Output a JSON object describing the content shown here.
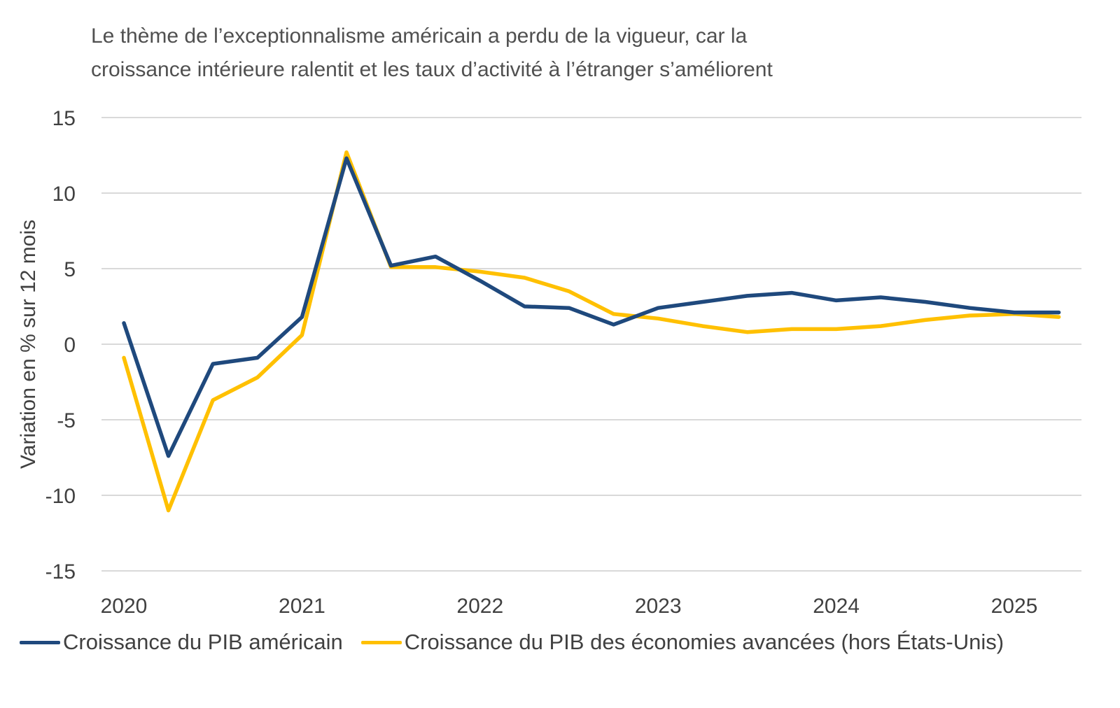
{
  "chart_data": {
    "type": "line",
    "title": "Le thème de l’exceptionnalisme américain a perdu de la vigueur, car la croissance intérieure ralentit et les taux d’activité à l’étranger s’améliorent",
    "title_lines": [
      "Le thème de l’exceptionnalisme américain a perdu de la vigueur, car la",
      "croissance intérieure ralentit et les taux d’activité à l’étranger s’améliorent"
    ],
    "xlabel": "",
    "ylabel": "Variation en % sur 12 mois",
    "ylim": [
      -15,
      15
    ],
    "yticks": [
      15,
      10,
      5,
      0,
      -5,
      -10,
      -15
    ],
    "xticks": [
      "2020",
      "2021",
      "2022",
      "2023",
      "2024",
      "2025"
    ],
    "x": [
      "2020T1",
      "2020T2",
      "2020T3",
      "2020T4",
      "2021T1",
      "2021T2",
      "2021T3",
      "2021T4",
      "2022T1",
      "2022T2",
      "2022T3",
      "2022T4",
      "2023T1",
      "2023T2",
      "2023T3",
      "2023T4",
      "2024T1",
      "2024T2",
      "2024T3",
      "2024T4",
      "2025T1",
      "2025T2"
    ],
    "grid": true,
    "legend_position": "bottom",
    "series": [
      {
        "name": "Croissance du PIB américain",
        "color": "#1F497D",
        "values": [
          1.4,
          -7.4,
          -1.3,
          -0.9,
          1.8,
          12.3,
          5.2,
          5.8,
          4.2,
          2.5,
          2.4,
          1.3,
          2.4,
          2.8,
          3.2,
          3.4,
          2.9,
          3.1,
          2.8,
          2.4,
          2.1,
          2.1
        ]
      },
      {
        "name": "Croissance du PIB des économies avancées (hors États-Unis)",
        "color": "#FFC000",
        "values": [
          -0.9,
          -11.0,
          -3.7,
          -2.2,
          0.6,
          12.7,
          5.1,
          5.1,
          4.8,
          4.4,
          3.5,
          2.0,
          1.7,
          1.2,
          0.8,
          1.0,
          1.0,
          1.2,
          1.6,
          1.9,
          2.0,
          1.8
        ]
      }
    ]
  }
}
